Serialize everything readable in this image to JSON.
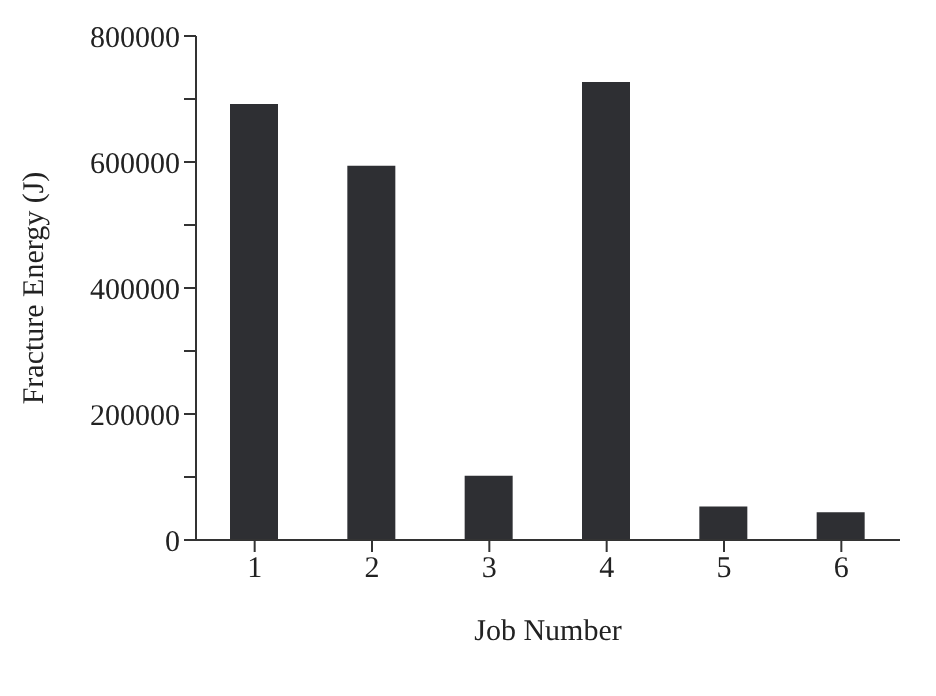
{
  "chart_data": {
    "type": "bar",
    "xlabel": "Job  Number",
    "ylabel": "Fracture Energy (J)",
    "categories": [
      "1",
      "2",
      "3",
      "4",
      "5",
      "6"
    ],
    "values": [
      692000,
      594000,
      102000,
      727000,
      53000,
      44000
    ],
    "color": "#2e2f33",
    "ylim": [
      0,
      800000
    ],
    "yticks": [
      0,
      {
        "value": 100000,
        "label": null
      },
      200000,
      {
        "value": 300000,
        "label": null
      },
      400000,
      {
        "value": 500000,
        "label": null
      },
      600000,
      {
        "value": 700000,
        "label": null
      },
      800000
    ],
    "grid": false,
    "legend": false
  }
}
